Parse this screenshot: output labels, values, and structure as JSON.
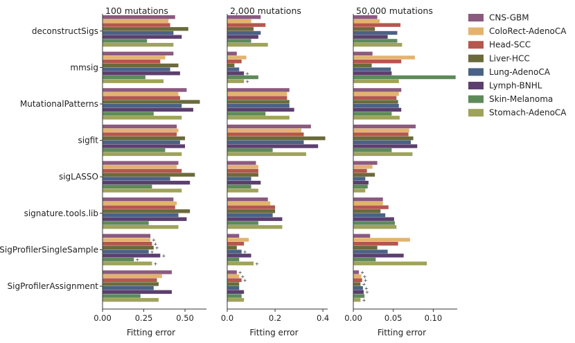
{
  "chart_data": {
    "type": "bar",
    "orientation": "horizontal",
    "xlabel": "Fitting error",
    "methods": [
      "deconstructSigs",
      "mmsig",
      "MutationalPatterns",
      "sigfit",
      "sigLASSO",
      "signature.tools.lib",
      "SigProfilerSingleSample",
      "SigProfilerAssignment"
    ],
    "legend": {
      "position": "top-right",
      "entries": [
        {
          "name": "CNS-GBM",
          "color": "#8b5a7e"
        },
        {
          "name": "ColoRect-AdenoCA",
          "color": "#e3b36e"
        },
        {
          "name": "Head-SCC",
          "color": "#b5564f"
        },
        {
          "name": "Liver-HCC",
          "color": "#6b6a3b"
        },
        {
          "name": "Lung-AdenoCA",
          "color": "#4a6285"
        },
        {
          "name": "Lymph-BNHL",
          "color": "#5c3f6e"
        },
        {
          "name": "Skin-Melanoma",
          "color": "#5e8a5a"
        },
        {
          "name": "Stomach-AdenoCA",
          "color": "#9fa35a"
        }
      ]
    },
    "panels": [
      {
        "title": "100 mutations",
        "xlim": [
          0,
          0.63
        ],
        "xticks": [
          0,
          0.25,
          0.5
        ],
        "xtick_labels": [
          "0.00",
          "0.25",
          "0.50"
        ],
        "values": [
          [
            0.44,
            0.4,
            0.41,
            0.52,
            0.43,
            0.48,
            0.27,
            0.43
          ],
          [
            0.43,
            0.38,
            0.35,
            0.46,
            0.41,
            0.47,
            0.26,
            0.37
          ],
          [
            0.51,
            0.46,
            0.47,
            0.59,
            0.48,
            0.55,
            0.31,
            0.48
          ],
          [
            0.45,
            0.46,
            0.45,
            0.5,
            0.47,
            0.5,
            0.38,
            0.48
          ],
          [
            0.46,
            0.45,
            0.48,
            0.56,
            0.41,
            0.53,
            0.3,
            0.48
          ],
          [
            0.43,
            0.45,
            0.44,
            0.53,
            0.46,
            0.51,
            0.28,
            0.46
          ],
          [
            0.29,
            0.29,
            0.3,
            0.31,
            0.28,
            0.35,
            0.19,
            0.3
          ],
          [
            0.42,
            0.36,
            0.33,
            0.34,
            0.31,
            0.42,
            0.23,
            0.34
          ]
        ]
      },
      {
        "title": "2,000 mutations",
        "xlim": [
          0,
          0.42
        ],
        "xticks": [
          0,
          0.2,
          0.4
        ],
        "xtick_labels": [
          "0.0",
          "0.2",
          "0.4"
        ],
        "values": [
          [
            0.14,
            0.1,
            0.16,
            0.11,
            0.14,
            0.13,
            0.1,
            0.17
          ],
          [
            0.04,
            0.08,
            0.06,
            0.03,
            0.05,
            0.07,
            0.13,
            0.07
          ],
          [
            0.26,
            0.25,
            0.25,
            0.26,
            0.26,
            0.28,
            0.16,
            0.26
          ],
          [
            0.35,
            0.31,
            0.32,
            0.41,
            0.32,
            0.38,
            0.19,
            0.33
          ],
          [
            0.12,
            0.13,
            0.13,
            0.13,
            0.1,
            0.14,
            0.1,
            0.13
          ],
          [
            0.17,
            0.18,
            0.2,
            0.2,
            0.19,
            0.23,
            0.13,
            0.23
          ],
          [
            0.05,
            0.09,
            0.07,
            0.04,
            0.06,
            0.1,
            0.05,
            0.11
          ],
          [
            0.04,
            0.05,
            0.06,
            0.05,
            0.05,
            0.07,
            0.06,
            0.07
          ]
        ]
      },
      {
        "title": "50,000 mutations",
        "xlim": [
          0,
          0.13
        ],
        "xticks": [
          0,
          0.05,
          0.1
        ],
        "xtick_labels": [
          "0.00",
          "0.05",
          "0.10"
        ],
        "values": [
          [
            0.03,
            0.033,
            0.059,
            0.027,
            0.055,
            0.043,
            0.055,
            0.061
          ],
          [
            0.024,
            0.077,
            0.06,
            0.023,
            0.047,
            0.048,
            0.128,
            0.057
          ],
          [
            0.06,
            0.057,
            0.054,
            0.056,
            0.057,
            0.06,
            0.048,
            0.058
          ],
          [
            0.078,
            0.07,
            0.069,
            0.075,
            0.072,
            0.08,
            0.048,
            0.074
          ],
          [
            0.03,
            0.024,
            0.017,
            0.027,
            0.015,
            0.019,
            0.018,
            0.015
          ],
          [
            0.037,
            0.037,
            0.044,
            0.034,
            0.04,
            0.051,
            0.052,
            0.054
          ],
          [
            0.021,
            0.071,
            0.056,
            0.03,
            0.043,
            0.063,
            0.028,
            0.092
          ],
          [
            0.007,
            0.01,
            0.011,
            0.009,
            0.012,
            0.013,
            0.014,
            0.009
          ]
        ]
      }
    ]
  },
  "annotations": {
    "marker_symbol": "+",
    "panel_markers": [
      [],
      [
        {
          "method": 1,
          "series": 5
        },
        {
          "method": 1,
          "series": 7
        },
        {
          "method": 6,
          "series": 7
        },
        {
          "method": 6,
          "series": 4
        },
        {
          "method": 7,
          "series": 0
        },
        {
          "method": 7,
          "series": 1
        },
        {
          "method": 7,
          "series": 2
        }
      ],
      [
        {
          "method": 7,
          "series": 0
        },
        {
          "method": 7,
          "series": 1
        },
        {
          "method": 7,
          "series": 2
        },
        {
          "method": 7,
          "series": 3
        },
        {
          "method": 7,
          "series": 4
        },
        {
          "method": 7,
          "series": 5
        },
        {
          "method": 7,
          "series": 7
        }
      ]
    ],
    "spp_markers": [
      1,
      2,
      3,
      4,
      5,
      6,
      7
    ]
  }
}
